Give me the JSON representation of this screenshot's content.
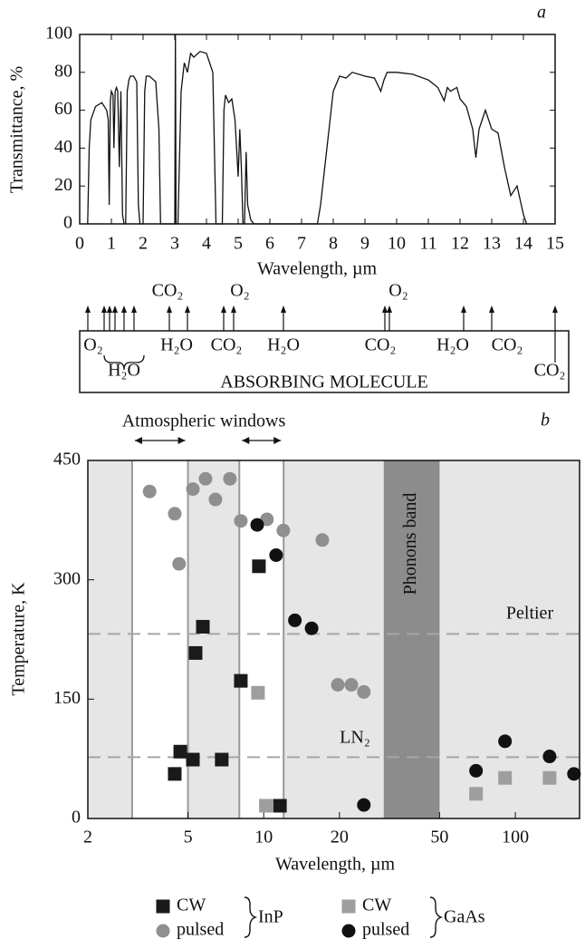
{
  "chart_data": [
    {
      "type": "line",
      "panel_label": "a",
      "y_label": "Transmittance, %",
      "x_label": "Wavelength, µm",
      "x": [
        0.25,
        0.3,
        0.35,
        0.5,
        0.7,
        0.85,
        0.9,
        0.93,
        0.97,
        1.0,
        1.05,
        1.08,
        1.12,
        1.16,
        1.2,
        1.25,
        1.3,
        1.35,
        1.4,
        1.45,
        1.5,
        1.55,
        1.6,
        1.7,
        1.8,
        1.85,
        1.9,
        2.0,
        2.05,
        2.1,
        2.2,
        2.4,
        2.5,
        2.55,
        2.6,
        2.9,
        3.0,
        3.02,
        3.04,
        3.1,
        3.2,
        3.3,
        3.4,
        3.5,
        3.6,
        3.8,
        4.0,
        4.2,
        4.3,
        4.4,
        4.5,
        4.55,
        4.6,
        4.7,
        4.8,
        4.9,
        5.0,
        5.05,
        5.1,
        5.15,
        5.2,
        5.25,
        5.3,
        5.4,
        5.5,
        7.5,
        7.6,
        7.8,
        7.9,
        8.0,
        8.2,
        8.4,
        8.6,
        9.0,
        9.3,
        9.5,
        9.6,
        9.7,
        10.0,
        10.5,
        11.0,
        11.3,
        11.5,
        11.6,
        11.7,
        11.9,
        12.0,
        12.2,
        12.4,
        12.5,
        12.6,
        12.8,
        13.0,
        13.2,
        13.4,
        13.6,
        13.8,
        14.0,
        14.1
      ],
      "values": [
        0,
        40,
        55,
        62,
        64,
        60,
        55,
        10,
        65,
        70,
        68,
        40,
        70,
        72,
        70,
        30,
        70,
        5,
        0,
        0,
        70,
        76,
        78,
        78,
        75,
        10,
        0,
        0,
        70,
        78,
        78,
        75,
        50,
        0,
        0,
        0,
        0,
        100,
        0,
        0,
        70,
        85,
        80,
        90,
        88,
        91,
        90,
        80,
        0,
        0,
        0,
        60,
        68,
        64,
        66,
        55,
        25,
        50,
        30,
        0,
        0,
        38,
        10,
        2,
        0,
        0,
        10,
        40,
        55,
        70,
        78,
        77,
        80,
        78,
        77,
        70,
        76,
        80,
        80,
        79,
        76,
        72,
        65,
        72,
        70,
        72,
        66,
        62,
        50,
        35,
        50,
        60,
        50,
        48,
        30,
        15,
        20,
        5,
        0
      ],
      "color": "#111111",
      "xlim": [
        0,
        15
      ],
      "xticks": [
        0,
        1,
        2,
        3,
        4,
        5,
        6,
        7,
        8,
        9,
        10,
        11,
        12,
        13,
        14,
        15
      ],
      "ylim": [
        0,
        100
      ],
      "yticks": [
        0,
        20,
        40,
        60,
        80,
        100
      ],
      "absorbing_molecule": {
        "title": "ABSORBING MOLECULE",
        "labels": [
          "CO₂",
          "O₂",
          "O₂",
          "O₂",
          "H₂O",
          "H₂O",
          "CO₂",
          "H₂O",
          "CO₂",
          "H₂O",
          "CO₂",
          "CO₂"
        ]
      }
    },
    {
      "type": "scatter",
      "panel_label": "b",
      "y_label": "Temperature, K",
      "x_label": "Wavelength, µm",
      "log_x": true,
      "xlim": [
        2,
        180
      ],
      "xticks": [
        2,
        5,
        10,
        20,
        50,
        100
      ],
      "ylim": [
        0,
        450
      ],
      "yticks": [
        0,
        150,
        300,
        450
      ],
      "windows": [
        [
          3,
          5
        ],
        [
          8,
          12
        ]
      ],
      "windows_label": "Atmospheric windows",
      "phonons_band": {
        "label": "Phonons band",
        "x": [
          30,
          50
        ]
      },
      "reference_lines": [
        {
          "value": 232,
          "label": "Peltier"
        },
        {
          "value": 77,
          "label": "LN₂"
        }
      ],
      "series": [
        {
          "name": "CW",
          "group": "InP",
          "marker": "square",
          "color": "#1a1a1a",
          "x": [
            4.43,
            4.66,
            5.23,
            5.36,
            5.73,
            6.81,
            8.11,
            9.57,
            11.6
          ],
          "values": [
            56,
            84,
            74,
            208,
            241,
            74,
            173,
            317,
            16
          ]
        },
        {
          "name": "pulsed",
          "group": "InP",
          "marker": "circle",
          "color": "#8f8f8f",
          "x": [
            3.52,
            4.43,
            4.61,
            5.23,
            5.87,
            6.43,
            7.34,
            8.11,
            10.3,
            11.97,
            17.1,
            19.7,
            22.3,
            25.0
          ],
          "values": [
            411,
            383,
            320,
            414,
            427,
            401,
            427,
            374,
            376,
            362,
            350,
            168,
            168,
            159
          ]
        },
        {
          "name": "CW",
          "group": "GaAs",
          "marker": "square",
          "color": "#9e9e9e",
          "x": [
            9.49,
            10.2,
            69.8,
            91.0,
            136.8
          ],
          "values": [
            158,
            16,
            31,
            51,
            51
          ]
        },
        {
          "name": "pulsed",
          "group": "GaAs",
          "marker": "circle",
          "color": "#111111",
          "x": [
            9.42,
            11.2,
            13.3,
            15.5,
            25.0,
            69.8,
            91.0,
            136.8,
            171
          ],
          "values": [
            369,
            331,
            249,
            239,
            17,
            60,
            97,
            78,
            56
          ]
        }
      ]
    }
  ]
}
